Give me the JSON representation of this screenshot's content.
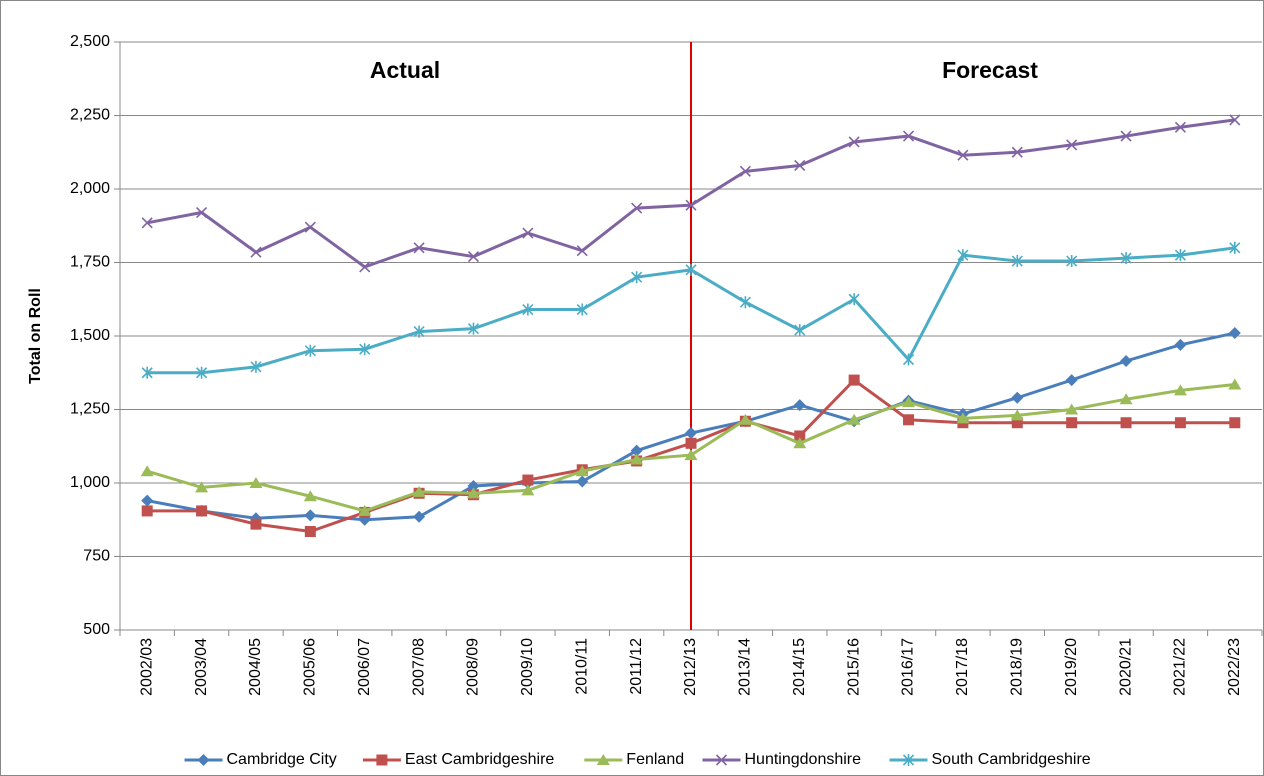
{
  "chart_data": {
    "type": "line",
    "y_label": "Total on Roll",
    "annotations": [
      "Actual",
      "Forecast"
    ],
    "divider_category": "2012/13",
    "divider_color": "#e00000",
    "categories": [
      "2002/03",
      "2003/04",
      "2004/05",
      "2005/06",
      "2006/07",
      "2007/08",
      "2008/09",
      "2009/10",
      "2010/11",
      "2011/12",
      "2012/13",
      "2013/14",
      "2014/15",
      "2015/16",
      "2016/17",
      "2017/18",
      "2018/19",
      "2019/20",
      "2020/21",
      "2021/22",
      "2022/23"
    ],
    "series": [
      {
        "name": "Cambridge City",
        "color": "#4a7ebb",
        "marker": "diamond",
        "values": [
          940,
          905,
          880,
          890,
          875,
          885,
          990,
          1000,
          1005,
          1110,
          1170,
          1210,
          1265,
          1210,
          1280,
          1235,
          1290,
          1350,
          1415,
          1470,
          1510
        ]
      },
      {
        "name": "East Cambridgeshire",
        "color": "#c0504d",
        "marker": "square",
        "values": [
          905,
          905,
          860,
          835,
          900,
          965,
          960,
          1010,
          1045,
          1075,
          1135,
          1210,
          1160,
          1350,
          1215,
          1205,
          1205,
          1205,
          1205,
          1205,
          1205
        ]
      },
      {
        "name": "Fenland",
        "color": "#9bbb59",
        "marker": "triangle",
        "values": [
          1040,
          985,
          1000,
          955,
          905,
          970,
          965,
          975,
          1040,
          1080,
          1095,
          1215,
          1135,
          1215,
          1275,
          1220,
          1230,
          1250,
          1285,
          1315,
          1335
        ]
      },
      {
        "name": "Huntingdonshire",
        "color": "#8064a2",
        "marker": "x",
        "values": [
          1885,
          1920,
          1785,
          1870,
          1735,
          1800,
          1770,
          1850,
          1790,
          1935,
          1945,
          2060,
          2080,
          2160,
          2180,
          2115,
          2125,
          2150,
          2180,
          2210,
          2235
        ]
      },
      {
        "name": "South Cambridgeshire",
        "color": "#4bacc6",
        "marker": "star",
        "values": [
          1375,
          1375,
          1395,
          1450,
          1455,
          1515,
          1525,
          1590,
          1590,
          1700,
          1725,
          1615,
          1520,
          1625,
          1420,
          1775,
          1755,
          1755,
          1765,
          1775,
          1800
        ]
      }
    ],
    "ylim": [
      500,
      2500
    ],
    "yticks": [
      500,
      750,
      {
        "value": 1000,
        "label": "1,000"
      },
      {
        "value": 1250,
        "label": "1,250"
      },
      {
        "value": 1500,
        "label": "1,500"
      },
      {
        "value": 1750,
        "label": "1,750"
      },
      {
        "value": 2000,
        "label": "2,000"
      },
      {
        "value": 2250,
        "label": "2,250"
      },
      {
        "value": 2500,
        "label": "2,500"
      }
    ],
    "grid": true,
    "legend": "bottom"
  }
}
